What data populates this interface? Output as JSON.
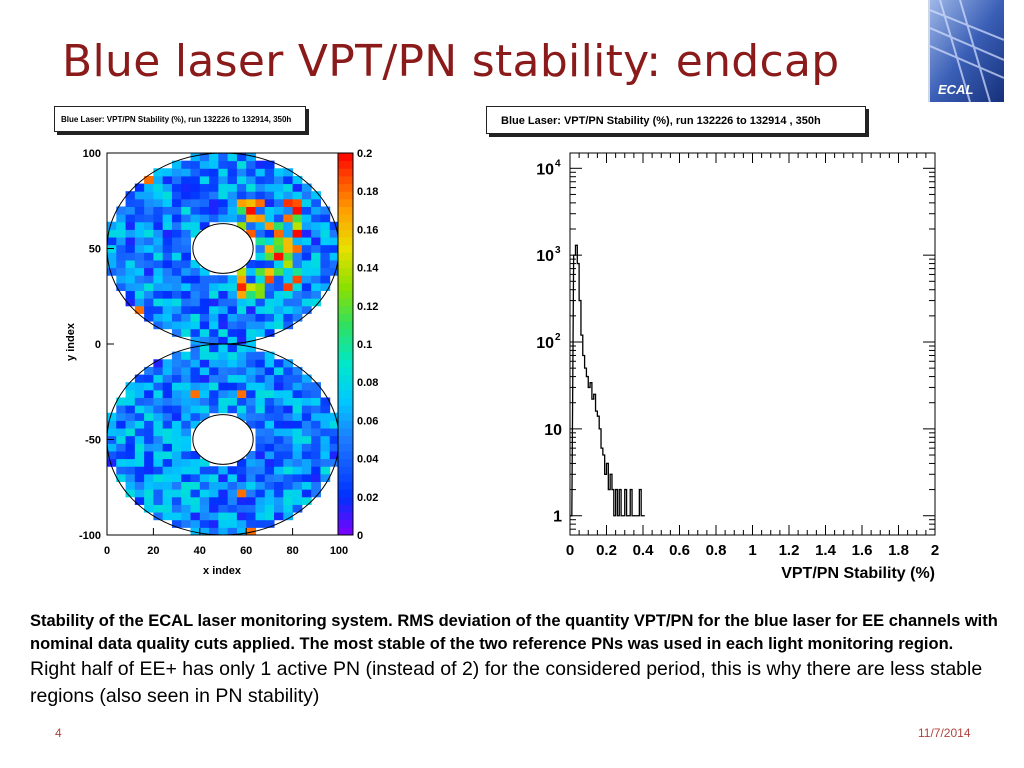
{
  "slide": {
    "title": "Blue laser VPT/PN stability: endcap",
    "logo_text": "ECAL",
    "date": "11/7/2014",
    "page_number": "4"
  },
  "caption": {
    "bold": "Stability of the ECAL laser monitoring system. RMS deviation of the quantity VPT/PN for the blue laser for EE channels with nominal data quality cuts applied. The most stable of the two reference PNs was used in each light monitoring region.",
    "normal": "Right half of EE+ has only 1 active PN (instead of 2) for the considered period, this is why there are less stable regions (also seen in PN stability)"
  },
  "chart_data": [
    {
      "type": "heatmap",
      "title": "Blue Laser:  VPT/PN Stability (%), run 132226 to 132914, 350h",
      "xlabel": "x index",
      "ylabel": "y index",
      "xlim": [
        0,
        100
      ],
      "ylim": [
        -100,
        100
      ],
      "x_ticks": [
        "0",
        "20",
        "40",
        "60",
        "80",
        "100"
      ],
      "y_ticks": [
        "100",
        "50",
        "0",
        "-50",
        "-100"
      ],
      "colorbar": {
        "range": [
          0,
          0.2
        ],
        "ticks": [
          "0.2",
          "0.18",
          "0.16",
          "0.14",
          "0.12",
          "0.1",
          "0.08",
          "0.06",
          "0.04",
          "0.02",
          "0"
        ]
      },
      "dominant_value": 0.05,
      "hot_regions_value": 0.15
    },
    {
      "type": "line",
      "title": "Blue Laser: VPT/PN Stability (%), run 132226 to 132914 , 350h",
      "xlabel": "VPT/PN Stability (%)",
      "ylabel": "",
      "y_scale": "log",
      "xlim": [
        0,
        2
      ],
      "ylim": [
        0.6,
        15000
      ],
      "x_ticks": [
        "0",
        "0.2",
        "0.4",
        "0.6",
        "0.8",
        "1",
        "1.2",
        "1.4",
        "1.6",
        "1.8",
        "2"
      ],
      "y_ticks": [
        "10^4",
        "10^3",
        "10^2",
        "10",
        "1"
      ],
      "x": [
        0.0,
        0.02,
        0.03,
        0.04,
        0.05,
        0.06,
        0.07,
        0.08,
        0.09,
        0.1,
        0.11,
        0.12,
        0.13,
        0.14,
        0.15,
        0.16,
        0.17,
        0.18,
        0.19,
        0.2,
        0.21,
        0.22,
        0.23,
        0.24,
        0.25,
        0.26,
        0.27,
        0.28,
        0.29,
        0.3,
        0.31,
        0.32,
        0.33,
        0.34,
        0.35,
        0.36,
        0.37,
        0.38,
        0.39,
        0.4
      ],
      "values": [
        1,
        1000,
        1300,
        800,
        300,
        120,
        70,
        50,
        40,
        30,
        34,
        22,
        25,
        16,
        14,
        10,
        6,
        5,
        3,
        4,
        2,
        3,
        2,
        1,
        2,
        1,
        2,
        1,
        1,
        2,
        1,
        1,
        2,
        1,
        1,
        1,
        1,
        2,
        1,
        1
      ]
    }
  ]
}
